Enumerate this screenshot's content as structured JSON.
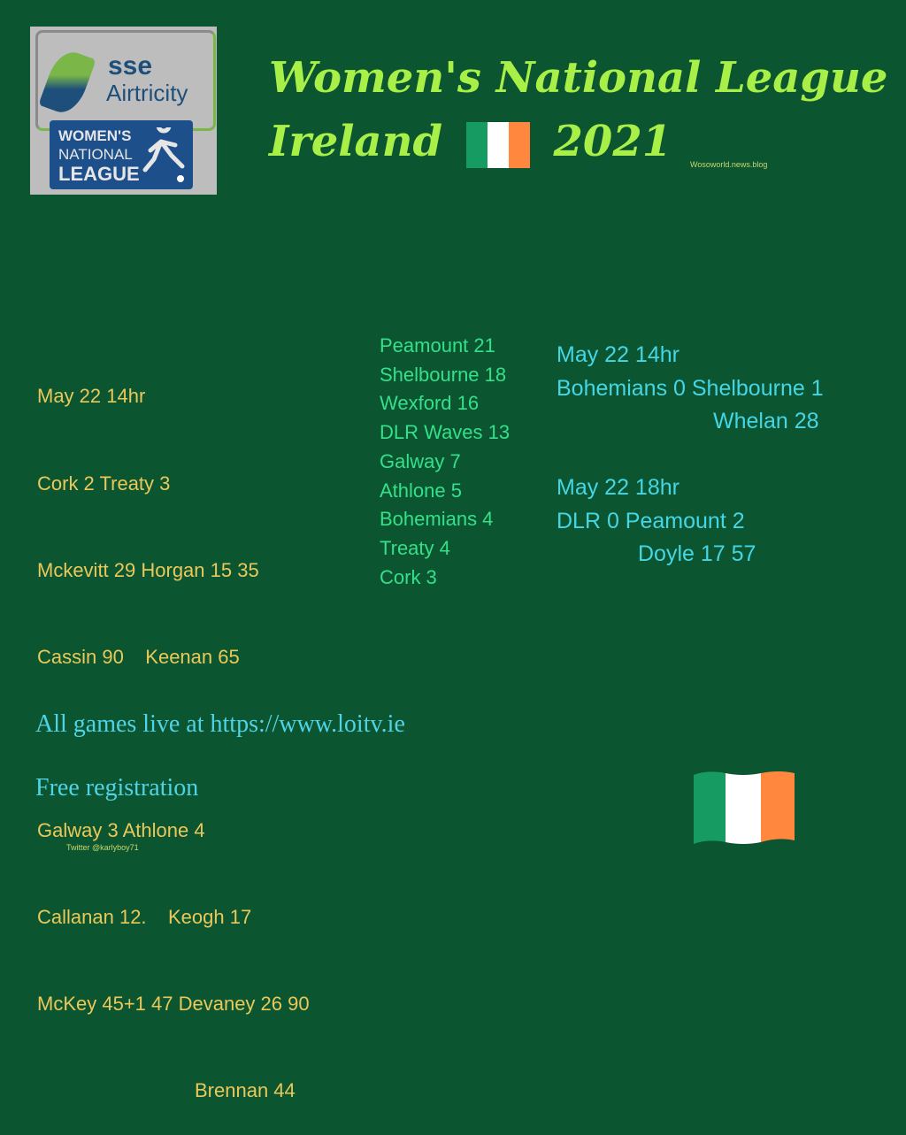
{
  "logo": {
    "brand_top": "sse",
    "brand_bottom": "Airtricity",
    "badge": [
      "WOMEN'S",
      "NATIONAL",
      "LEAGUE"
    ]
  },
  "header": {
    "title_line1": "Women's National League",
    "title_line2_a": "Ireland",
    "title_line2_b": "2021",
    "credit": "Wosoworld.news.blog"
  },
  "results_left": [
    "May 22 14hr",
    "Cork 2 Treaty 3",
    "Mckevitt 29 Horgan 15 35",
    "Cassin 90    Keenan 65",
    "",
    "Galway 3 Athlone 4",
    "Callanan 12.    Keogh 17",
    "McKey 45+1 47 Devaney 26 90",
    "Brennan 44"
  ],
  "standings": [
    "Peamount 21",
    "Shelbourne 18",
    "Wexford 16",
    "DLR Waves 13",
    "Galway 7",
    "Athlone 5",
    "Bohemians 4",
    "Treaty 4",
    "Cork 3"
  ],
  "results_right": {
    "match1": {
      "time": "May 22 14hr",
      "score": "Bohemians 0 Shelbourne 1",
      "scorers": "Whelan 28"
    },
    "match2": {
      "time": "May 22 18hr",
      "score": "DLR 0  Peamount 2",
      "scorers": "Doyle 17 57"
    }
  },
  "footer": {
    "live": "All games live at https://www.loitv.ie",
    "registration": "Free registration",
    "twitter": "Twitter @karlyboy71"
  },
  "colors": {
    "background": "#0b5530",
    "title": "#a8f048",
    "results": "#ebc85a",
    "standings": "#35e08a",
    "right_results": "#45d6e6",
    "flag_green": "#169b62",
    "flag_white": "#ffffff",
    "flag_orange": "#ff883e"
  }
}
